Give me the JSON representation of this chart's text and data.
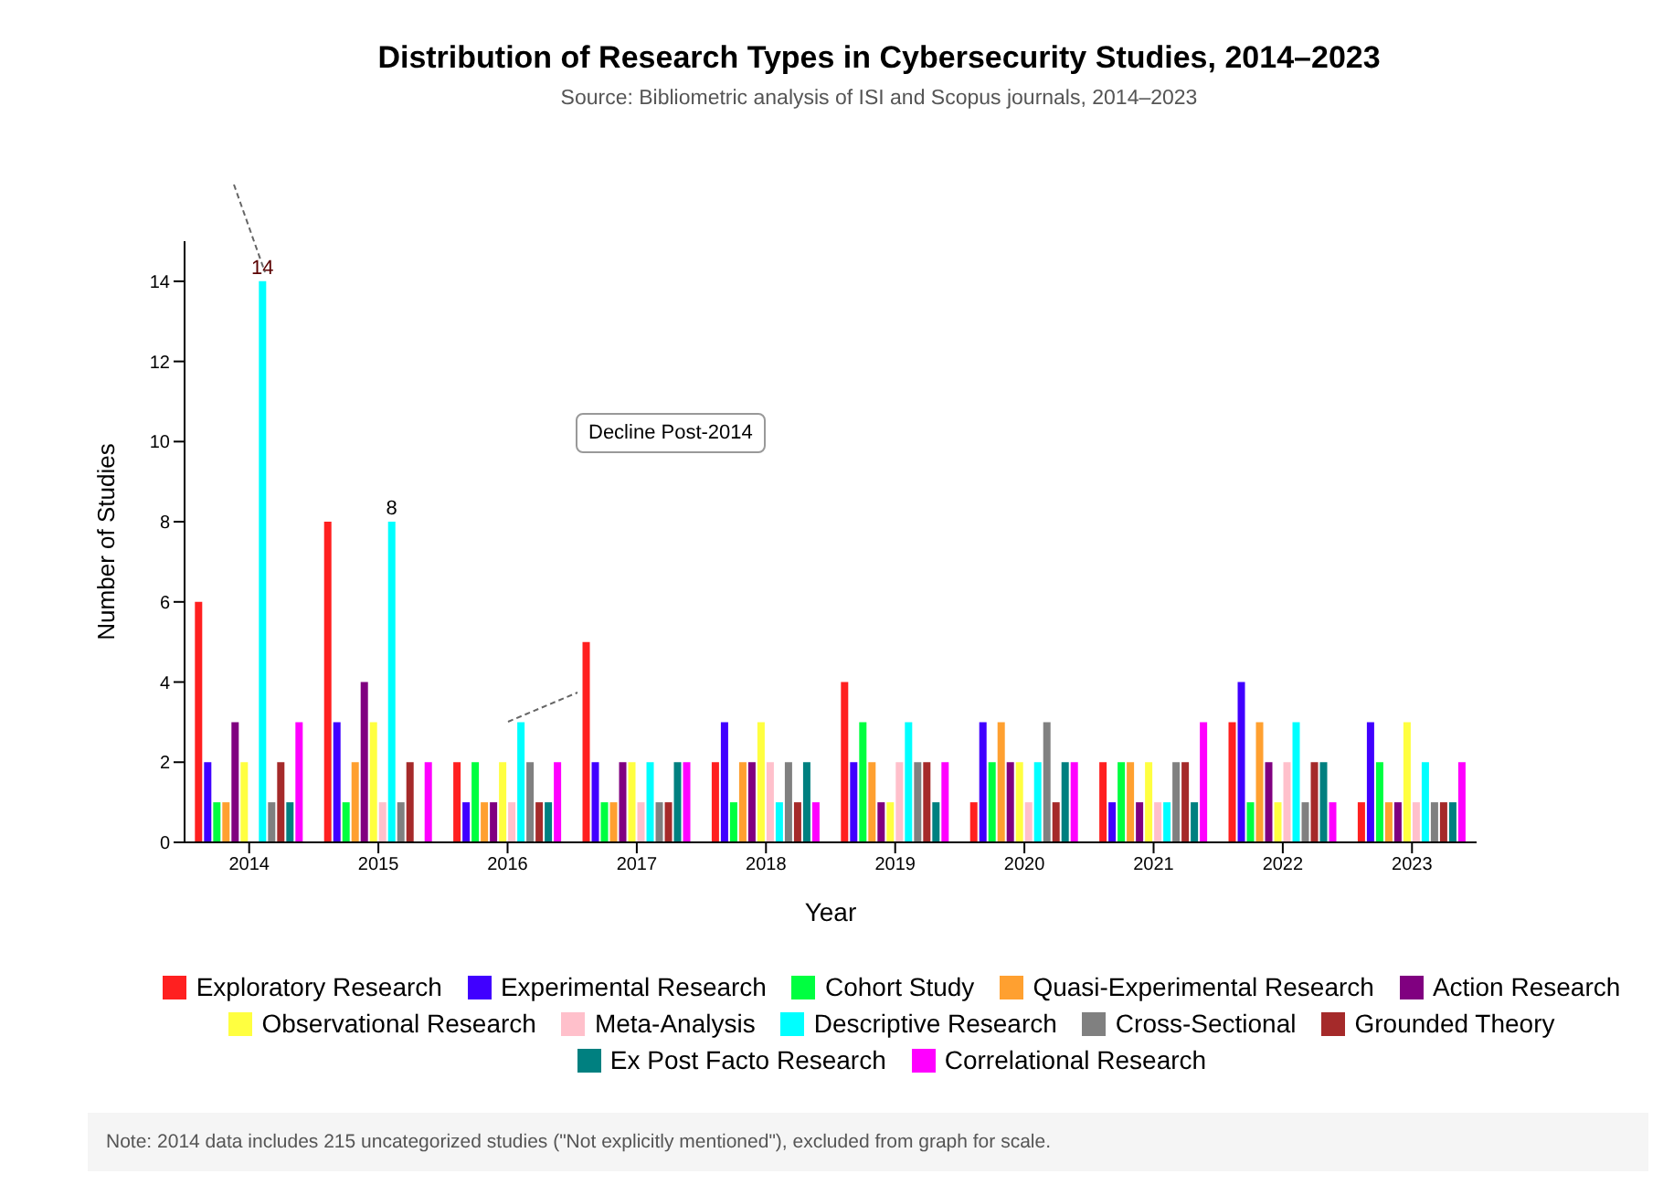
{
  "chart_data": {
    "type": "bar",
    "title": "Distribution of Research Types in Cybersecurity Studies, 2014–2023",
    "subtitle": "Source: Bibliometric analysis of ISI and Scopus journals, 2014–2023",
    "xlabel": "Year",
    "ylabel": "Number of Studies",
    "categories": [
      "2014",
      "2015",
      "2016",
      "2017",
      "2018",
      "2019",
      "2020",
      "2021",
      "2022",
      "2023"
    ],
    "series": [
      {
        "name": "Exploratory Research",
        "color": "#ff2020",
        "values": [
          6,
          8,
          2,
          5,
          2,
          4,
          1,
          2,
          3,
          1
        ]
      },
      {
        "name": "Experimental Research",
        "color": "#4000ff",
        "values": [
          2,
          3,
          1,
          2,
          3,
          2,
          3,
          1,
          4,
          3
        ]
      },
      {
        "name": "Cohort Study",
        "color": "#00ff40",
        "values": [
          1,
          1,
          2,
          1,
          1,
          3,
          2,
          2,
          1,
          2
        ]
      },
      {
        "name": "Quasi-Experimental Research",
        "color": "#ffa030",
        "values": [
          1,
          2,
          1,
          1,
          2,
          2,
          3,
          2,
          3,
          1
        ]
      },
      {
        "name": "Action Research",
        "color": "#800080",
        "values": [
          3,
          4,
          1,
          2,
          2,
          1,
          2,
          1,
          2,
          1
        ]
      },
      {
        "name": "Observational Research",
        "color": "#ffff40",
        "values": [
          2,
          3,
          2,
          2,
          3,
          1,
          2,
          2,
          1,
          3
        ]
      },
      {
        "name": "Meta-Analysis",
        "color": "#ffc0cb",
        "values": [
          0,
          1,
          1,
          1,
          2,
          2,
          1,
          1,
          2,
          1
        ]
      },
      {
        "name": "Descriptive Research",
        "color": "#00ffff",
        "values": [
          14,
          8,
          3,
          2,
          1,
          3,
          2,
          1,
          3,
          2
        ],
        "value_labels": [
          "14",
          "8",
          null,
          null,
          null,
          null,
          null,
          null,
          null,
          null
        ]
      },
      {
        "name": "Cross-Sectional",
        "color": "#808080",
        "values": [
          1,
          1,
          2,
          1,
          2,
          2,
          3,
          2,
          1,
          1
        ]
      },
      {
        "name": "Grounded Theory",
        "color": "#a52a2a",
        "values": [
          2,
          2,
          1,
          1,
          1,
          2,
          1,
          2,
          2,
          1
        ]
      },
      {
        "name": "Ex Post Facto Research",
        "color": "#008080",
        "values": [
          1,
          0,
          1,
          2,
          2,
          1,
          2,
          1,
          2,
          1
        ]
      },
      {
        "name": "Correlational Research",
        "color": "#ff00ff",
        "values": [
          3,
          2,
          2,
          2,
          1,
          2,
          2,
          3,
          1,
          2
        ]
      }
    ],
    "ylim": [
      0,
      15
    ],
    "yticks": [
      0,
      2,
      4,
      6,
      8,
      10,
      12,
      14
    ],
    "grid": false,
    "legend": "bottom",
    "annotations": [
      "Decline Post-2014",
      "Note: 2014 data includes 215 uncategorized studies (\"Not explicitly mentioned\"), excluded from graph for scale."
    ]
  }
}
